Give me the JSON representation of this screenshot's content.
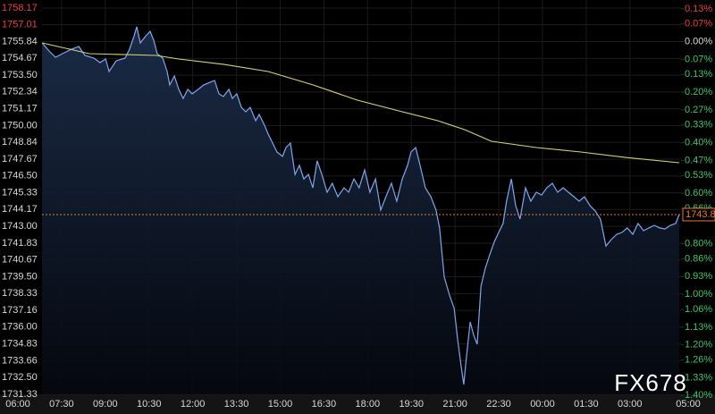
{
  "chart_data": {
    "type": "line",
    "watermark": "FX678",
    "last_price_label": "1743.8",
    "up_color": "#e8413c",
    "down_color": "#3ec46d",
    "axis_color": "#d8d8d8",
    "last_color": "#e8763c",
    "grid": true,
    "xlim": [
      0,
      23
    ],
    "xticks": [
      {
        "value": 0,
        "label": "06:00"
      },
      {
        "value": 1.5,
        "label": "07:30"
      },
      {
        "value": 3,
        "label": "09:00"
      },
      {
        "value": 4.5,
        "label": "10:30"
      },
      {
        "value": 6,
        "label": "12:00"
      },
      {
        "value": 7.5,
        "label": "13:30"
      },
      {
        "value": 9,
        "label": "15:00"
      },
      {
        "value": 10.5,
        "label": "16:30"
      },
      {
        "value": 12,
        "label": "18:00"
      },
      {
        "value": 13.5,
        "label": "19:30"
      },
      {
        "value": 15,
        "label": "21:00"
      },
      {
        "value": 16.5,
        "label": "22:30"
      },
      {
        "value": 18,
        "label": "00:00"
      },
      {
        "value": 19.5,
        "label": "01:30"
      },
      {
        "value": 21,
        "label": "03:00"
      },
      {
        "value": 23,
        "label": "05:00"
      }
    ],
    "ylim": [
      1731.33,
      1758.17
    ],
    "yticks": [
      1758.17,
      1757.01,
      1755.84,
      1754.67,
      {
        "value": 1753.5,
        "label": "1753.50"
      },
      1752.34,
      1751.17,
      {
        "value": 1750,
        "label": "1750.00"
      },
      1748.84,
      1747.67,
      {
        "value": 1746.5,
        "label": "1746.50"
      },
      1745.33,
      1744.17,
      {
        "value": 1743,
        "label": "1743.00"
      },
      1741.83,
      1740.67,
      {
        "value": 1739.5,
        "label": "1739.50"
      },
      1738.33,
      1737.16,
      {
        "value": 1736,
        "label": "1736.00"
      },
      1734.83,
      1733.66,
      {
        "value": 1732.5,
        "label": "1732.50"
      },
      1731.33
    ],
    "y2lim": [
      -1.396,
      0.133
    ],
    "y2ticks": [
      {
        "value": 0.13,
        "label": "0.13%"
      },
      {
        "value": 0.07,
        "label": "0.07%"
      },
      {
        "value": 0,
        "label": "0.00%"
      },
      {
        "value": -0.07,
        "label": "0.07%"
      },
      {
        "value": -0.13,
        "label": "0.13%"
      },
      {
        "value": -0.2,
        "label": "0.20%"
      },
      {
        "value": -0.27,
        "label": "0.27%"
      },
      {
        "value": -0.33,
        "label": "0.33%"
      },
      {
        "value": -0.4,
        "label": "0.40%"
      },
      {
        "value": -0.47,
        "label": "0.47%"
      },
      {
        "value": -0.53,
        "label": "0.53%"
      },
      {
        "value": -0.6,
        "label": "0.60%"
      },
      {
        "value": -0.66,
        "label": "0.66%"
      },
      {
        "value": -0.8,
        "label": "0.80%"
      },
      {
        "value": -0.86,
        "label": "0.86%"
      },
      {
        "value": -0.93,
        "label": "0.93%"
      },
      {
        "value": -1,
        "label": "1.00%"
      },
      {
        "value": -1.06,
        "label": "1.06%"
      },
      {
        "value": -1.13,
        "label": "1.13%"
      },
      {
        "value": -1.2,
        "label": "1.20%"
      },
      {
        "value": -1.26,
        "label": "1.26%"
      },
      {
        "value": -1.33,
        "label": "1.33%"
      },
      {
        "value": -1.4,
        "label": "1.40%"
      }
    ],
    "series": [
      {
        "color": "#7ea6ee",
        "x": [
          0.83,
          1.07,
          1.29,
          1.53,
          1.84,
          2.09,
          2.3,
          2.61,
          2.82,
          3.01,
          3.13,
          3.37,
          3.68,
          3.83,
          3.99,
          4.08,
          4.2,
          4.39,
          4.54,
          4.66,
          4.78,
          4.97,
          5.12,
          5.21,
          5.37,
          5.52,
          5.67,
          5.83,
          5.98,
          6.19,
          6.38,
          6.59,
          6.75,
          6.9,
          7.05,
          7.24,
          7.36,
          7.51,
          7.67,
          7.82,
          7.97,
          8.16,
          8.28,
          8.46,
          8.59,
          8.74,
          8.89,
          9.08,
          9.2,
          9.35,
          9.51,
          9.66,
          9.81,
          9.97,
          10.12,
          10.27,
          10.43,
          10.61,
          10.79,
          10.98,
          11.19,
          11.35,
          11.53,
          11.71,
          11.9,
          12.08,
          12.27,
          12.45,
          12.63,
          12.82,
          13,
          13.19,
          13.37,
          13.49,
          13.65,
          13.8,
          13.98,
          14.17,
          14.35,
          14.47,
          14.63,
          14.81,
          14.97,
          15.09,
          15.21,
          15.3,
          15.39,
          15.52,
          15.64,
          15.76,
          15.89,
          16.04,
          16.19,
          16.35,
          16.5,
          16.65,
          16.77,
          16.93,
          17.08,
          17.23,
          17.42,
          17.6,
          17.79,
          17.97,
          18.15,
          18.34,
          18.52,
          18.71,
          18.89,
          19.08,
          19.26,
          19.44,
          19.63,
          19.81,
          19.99,
          20.18,
          20.36,
          20.55,
          20.73,
          20.91,
          21.1,
          21.28,
          21.47,
          21.65,
          21.84,
          22.02,
          22.2,
          22.39,
          22.57,
          22.69
        ],
        "values": [
          1755.75,
          1755.19,
          1754.75,
          1755,
          1755.31,
          1755.5,
          1754.88,
          1754.69,
          1754.38,
          1754.63,
          1753.76,
          1754.5,
          1754.69,
          1755.31,
          1756.24,
          1756.87,
          1755.75,
          1756.24,
          1756.55,
          1755.93,
          1755,
          1754.69,
          1753.76,
          1752.83,
          1753.45,
          1752.52,
          1751.89,
          1752.52,
          1752.21,
          1752.52,
          1752.83,
          1753.01,
          1753.14,
          1752.21,
          1752.02,
          1752.52,
          1751.89,
          1752.21,
          1751.27,
          1750.96,
          1751.27,
          1750.34,
          1750.78,
          1750.03,
          1749.41,
          1748.79,
          1748.17,
          1747.86,
          1748.48,
          1748.79,
          1746.61,
          1747.24,
          1746.3,
          1746.61,
          1745.68,
          1747.55,
          1746.61,
          1745.37,
          1745.99,
          1745.06,
          1745.68,
          1745.37,
          1746.3,
          1745.68,
          1746.92,
          1745.37,
          1746.3,
          1744.13,
          1745.06,
          1745.99,
          1744.75,
          1746.3,
          1747.24,
          1748.17,
          1748.48,
          1747.24,
          1745.68,
          1745.06,
          1744.13,
          1742.89,
          1739.47,
          1738.23,
          1737.29,
          1735.12,
          1733.26,
          1732.01,
          1733.88,
          1736.36,
          1735.43,
          1734.81,
          1738.85,
          1740.09,
          1741.02,
          1741.95,
          1742.58,
          1743.2,
          1744.75,
          1746.3,
          1744.44,
          1743.51,
          1745.68,
          1744.75,
          1745.37,
          1745.18,
          1745.68,
          1745.99,
          1745.37,
          1745.68,
          1745.37,
          1745.06,
          1744.75,
          1745.06,
          1744.44,
          1744.07,
          1743.51,
          1741.64,
          1742.08,
          1742.45,
          1742.58,
          1742.89,
          1742.45,
          1743.2,
          1742.7,
          1742.89,
          1743.07,
          1742.89,
          1742.82,
          1743.07,
          1743.2,
          1743.82
        ]
      },
      {
        "color": "#d9d27a",
        "x": [
          0.83,
          2.45,
          4.75,
          5.52,
          7.05,
          8.59,
          10.12,
          11.65,
          13.19,
          14.41,
          15.33,
          16.25,
          17.79,
          19.32,
          20.85,
          22.69
        ],
        "values": [
          1755.75,
          1755,
          1754.88,
          1754.63,
          1754.26,
          1753.76,
          1752.83,
          1751.77,
          1750.96,
          1750.34,
          1749.72,
          1748.91,
          1748.48,
          1748.17,
          1747.79,
          1747.42
        ]
      }
    ]
  }
}
